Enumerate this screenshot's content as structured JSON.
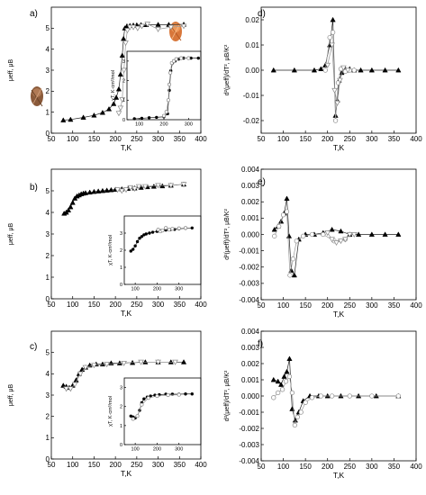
{
  "chart_data": [
    {
      "id": "main-a",
      "type": "scatter",
      "panel_label": "a)",
      "xlabel": "T,K",
      "ylabel": "μeff, μB",
      "xlim": [
        50,
        400
      ],
      "ylim": [
        0,
        6
      ],
      "xticks": [
        50,
        100,
        150,
        200,
        250,
        300,
        350,
        400
      ],
      "yticks": [
        0,
        1,
        2,
        3,
        4,
        5
      ],
      "series": [
        {
          "marker": "triangle-filled",
          "color": "#000000",
          "x": [
            78,
            95,
            125,
            150,
            170,
            185,
            196,
            202,
            208,
            212,
            216,
            219,
            222,
            227,
            234,
            242,
            250,
            260,
            272,
            300,
            325,
            360
          ],
          "y": [
            0.62,
            0.65,
            0.75,
            0.85,
            0.98,
            1.15,
            1.4,
            1.7,
            2.1,
            2.8,
            3.7,
            4.5,
            5.0,
            5.1,
            5.12,
            5.14,
            5.15,
            5.16,
            5.16,
            5.17,
            5.17,
            5.18
          ]
        },
        {
          "marker": "triangle-open-down",
          "color": "#888888",
          "x": [
            208,
            212,
            216,
            220,
            224,
            228,
            234,
            242,
            252,
            262,
            275,
            300,
            330,
            360
          ],
          "y": [
            0.95,
            1.2,
            1.6,
            3.0,
            4.3,
            4.9,
            5.05,
            5.05,
            5.0,
            5.1,
            5.2,
            4.95,
            5.05,
            5.1
          ]
        }
      ]
    },
    {
      "id": "inset-a",
      "type": "scatter",
      "inset": true,
      "xlabel": "",
      "ylabel": "χT, K·cm³/mol",
      "xlim": [
        50,
        350
      ],
      "ylim": [
        0,
        3.5
      ],
      "xticks": [
        100,
        200,
        300
      ],
      "yticks": [
        0,
        1,
        2,
        3
      ],
      "series": [
        {
          "marker": "circle-filled",
          "color": "#000000",
          "x": [
            80,
            110,
            140,
            170,
            200,
            215,
            222,
            228,
            235,
            245,
            260,
            280,
            310,
            340
          ],
          "y": [
            0.05,
            0.07,
            0.1,
            0.12,
            0.15,
            0.3,
            1.5,
            2.5,
            2.9,
            3.0,
            3.1,
            3.15,
            3.15,
            3.15
          ]
        },
        {
          "marker": "circle-open",
          "color": "#888888",
          "x": [
            200,
            210,
            218,
            222,
            226,
            232,
            240,
            250,
            270,
            300
          ],
          "y": [
            0.2,
            0.4,
            1.0,
            1.8,
            2.4,
            2.9,
            3.0,
            3.1,
            3.15,
            3.15
          ]
        }
      ]
    },
    {
      "id": "main-b",
      "type": "scatter",
      "panel_label": "b)",
      "xlabel": "T,K",
      "ylabel": "μeff, μB",
      "xlim": [
        50,
        400
      ],
      "ylim": [
        0,
        6
      ],
      "xticks": [
        50,
        100,
        150,
        200,
        250,
        300,
        350,
        400
      ],
      "yticks": [
        0,
        1,
        2,
        3,
        4,
        5
      ],
      "series": [
        {
          "marker": "triangle-filled",
          "color": "#000000",
          "x": [
            80,
            85,
            90,
            95,
            100,
            105,
            110,
            115,
            120,
            125,
            130,
            140,
            150,
            160,
            170,
            180,
            190,
            200,
            215,
            230,
            245,
            260,
            275,
            290,
            310,
            330,
            360
          ],
          "y": [
            3.95,
            4.0,
            4.1,
            4.25,
            4.45,
            4.65,
            4.75,
            4.8,
            4.85,
            4.88,
            4.9,
            4.93,
            4.96,
            4.98,
            5.0,
            5.02,
            5.04,
            5.06,
            5.08,
            5.1,
            5.12,
            5.15,
            5.18,
            5.2,
            5.22,
            5.25,
            5.3
          ]
        },
        {
          "marker": "triangle-open-down",
          "color": "#888888",
          "x": [
            205,
            215,
            225,
            235,
            245,
            255,
            270,
            300,
            330,
            360
          ],
          "y": [
            5.05,
            5.0,
            5.05,
            5.15,
            5.1,
            5.2,
            5.2,
            5.25,
            5.25,
            5.3
          ]
        }
      ]
    },
    {
      "id": "inset-b",
      "type": "scatter",
      "inset": true,
      "xlabel": "",
      "ylabel": "χT, K·cm³/mol",
      "xlim": [
        50,
        400
      ],
      "ylim": [
        0,
        4
      ],
      "xticks": [
        100,
        200,
        300
      ],
      "yticks": [
        0,
        1,
        2,
        3
      ],
      "series": [
        {
          "marker": "circle-filled",
          "color": "#000000",
          "x": [
            80,
            90,
            100,
            110,
            120,
            130,
            140,
            150,
            165,
            180,
            200,
            220,
            240,
            260,
            280,
            300,
            330,
            360
          ],
          "y": [
            1.95,
            2.05,
            2.25,
            2.5,
            2.7,
            2.8,
            2.9,
            2.95,
            3.0,
            3.05,
            3.1,
            3.15,
            3.18,
            3.2,
            3.22,
            3.25,
            3.28,
            3.3
          ]
        },
        {
          "marker": "circle-open",
          "color": "#888888",
          "x": [
            205,
            215,
            225,
            240,
            255,
            270,
            300,
            330
          ],
          "y": [
            3.2,
            3.1,
            3.15,
            3.3,
            3.2,
            3.25,
            3.28,
            3.3
          ]
        }
      ]
    },
    {
      "id": "main-c",
      "type": "scatter",
      "panel_label": "c)",
      "xlabel": "T,K",
      "ylabel": "μeff, μB",
      "xlim": [
        50,
        400
      ],
      "ylim": [
        0,
        6
      ],
      "xticks": [
        50,
        100,
        150,
        200,
        250,
        300,
        350,
        400
      ],
      "yticks": [
        0,
        1,
        2,
        3,
        4,
        5
      ],
      "series": [
        {
          "marker": "triangle-filled",
          "color": "#000000",
          "x": [
            78,
            85,
            92,
            100,
            108,
            115,
            122,
            130,
            140,
            155,
            170,
            190,
            210,
            240,
            270,
            300,
            330,
            360
          ],
          "y": [
            3.45,
            3.4,
            3.35,
            3.45,
            3.7,
            4.0,
            4.2,
            4.3,
            4.4,
            4.45,
            4.45,
            4.5,
            4.5,
            4.52,
            4.55,
            4.55,
            4.55,
            4.55
          ]
        },
        {
          "marker": "triangle-open-down",
          "color": "#888888",
          "x": [
            85,
            95,
            105,
            118,
            130,
            150,
            180,
            220,
            260,
            300,
            340
          ],
          "y": [
            3.3,
            3.3,
            3.5,
            4.0,
            4.3,
            4.4,
            4.45,
            4.5,
            4.55,
            4.55,
            4.55
          ]
        }
      ]
    },
    {
      "id": "inset-c",
      "type": "scatter",
      "inset": true,
      "xlabel": "",
      "ylabel": "χT, K·cm³/mol",
      "xlim": [
        50,
        400
      ],
      "ylim": [
        0,
        3.5
      ],
      "xticks": [
        100,
        200,
        300
      ],
      "yticks": [
        0,
        1,
        2,
        3
      ],
      "series": [
        {
          "marker": "circle-filled",
          "color": "#000000",
          "x": [
            80,
            90,
            100,
            110,
            120,
            130,
            140,
            155,
            170,
            190,
            210,
            240,
            270,
            300,
            330,
            360
          ],
          "y": [
            1.5,
            1.45,
            1.4,
            1.5,
            1.8,
            2.2,
            2.4,
            2.5,
            2.55,
            2.6,
            2.62,
            2.65,
            2.65,
            2.65,
            2.66,
            2.66
          ]
        },
        {
          "marker": "circle-open",
          "color": "#888888",
          "x": [
            90,
            110,
            130,
            160,
            200,
            250,
            300
          ],
          "y": [
            1.35,
            1.5,
            2.1,
            2.45,
            2.55,
            2.6,
            2.62
          ]
        }
      ]
    },
    {
      "id": "deriv-d",
      "type": "scatter",
      "panel_label": "d)",
      "xlabel": "T,K",
      "ylabel": "d²(μeff)/dT², μB/K²",
      "xlim": [
        50,
        400
      ],
      "ylim": [
        -0.025,
        0.025
      ],
      "xticks": [
        50,
        100,
        150,
        200,
        250,
        300,
        350,
        400
      ],
      "yticks": [
        -0.02,
        -0.01,
        0.0,
        0.01,
        0.02
      ],
      "yticklabels": [
        "-0.02",
        "-0.01",
        "0.00",
        "0.01",
        "0.02"
      ],
      "series": [
        {
          "marker": "triangle-filled",
          "color": "#000000",
          "x": [
            78,
            125,
            170,
            185,
            195,
            205,
            212,
            218,
            222,
            226,
            232,
            240,
            250,
            260,
            275,
            300,
            330,
            360
          ],
          "y": [
            0.0,
            0.0,
            0.0,
            0.0005,
            0.002,
            0.01,
            0.02,
            -0.018,
            -0.012,
            -0.004,
            -0.001,
            0.0005,
            0.0005,
            0.0,
            0.0,
            0.0,
            0.0,
            0.0
          ]
        },
        {
          "marker": "circle-open",
          "color": "#888888",
          "x": [
            195,
            205,
            212,
            218,
            224,
            230,
            240,
            250,
            260
          ],
          "y": [
            0.0,
            0.013,
            0.015,
            -0.02,
            -0.005,
            0.0005,
            -0.0005,
            0.0,
            0.0
          ]
        },
        {
          "marker": "triangle-open-down",
          "color": "#888888",
          "x": [
            200,
            210,
            216,
            222,
            228,
            236,
            246
          ],
          "y": [
            0.002,
            0.01,
            -0.008,
            -0.013,
            -0.004,
            0.001,
            0.0
          ]
        }
      ]
    },
    {
      "id": "deriv-e",
      "type": "scatter",
      "panel_label": "e)",
      "xlabel": "T,K",
      "ylabel": "d²(μeff)/dT², μB/K²",
      "xlim": [
        50,
        400
      ],
      "ylim": [
        -0.004,
        0.004
      ],
      "xticks": [
        50,
        100,
        150,
        200,
        250,
        300,
        350,
        400
      ],
      "yticks": [
        -0.004,
        -0.003,
        -0.002,
        -0.001,
        0.0,
        0.001,
        0.002,
        0.003,
        0.004
      ],
      "yticklabels": [
        "-0.004",
        "-0.003",
        "-0.002",
        "-0.001",
        "0.000",
        "0.001",
        "0.002",
        "0.003",
        "0.004"
      ],
      "series": [
        {
          "marker": "triangle-filled",
          "color": "#000000",
          "x": [
            80,
            88,
            95,
            102,
            108,
            113,
            118,
            125,
            135,
            150,
            170,
            190,
            210,
            230,
            250,
            270,
            300,
            330,
            360
          ],
          "y": [
            0.0003,
            0.0005,
            0.0008,
            0.0013,
            0.0022,
            -0.0001,
            -0.0022,
            -0.0025,
            -0.0003,
            0.0,
            0.0,
            0.0001,
            0.0003,
            0.0002,
            0.0,
            0.0,
            0.0,
            0.0,
            0.0
          ]
        },
        {
          "marker": "circle-open",
          "color": "#888888",
          "x": [
            80,
            90,
            100,
            108,
            115,
            122,
            130,
            145,
            165,
            190,
            215,
            240
          ],
          "y": [
            -0.0001,
            0.0005,
            0.0012,
            0.0014,
            -0.0025,
            -0.0015,
            -0.0004,
            -0.0001,
            0.0,
            0.0,
            -0.0004,
            -0.0003
          ]
        },
        {
          "marker": "triangle-open-down",
          "color": "#888888",
          "x": [
            200,
            210,
            220,
            230,
            240,
            250,
            260
          ],
          "y": [
            0.0001,
            -0.0003,
            -0.0005,
            -0.0004,
            -0.0003,
            0.0,
            0.0
          ]
        }
      ]
    },
    {
      "id": "deriv-f",
      "type": "scatter",
      "panel_label": "f)",
      "xlabel": "T,K",
      "ylabel": "d²(μeff)/dT², μB/K²",
      "xlim": [
        50,
        400
      ],
      "ylim": [
        -0.004,
        0.004
      ],
      "xticks": [
        50,
        100,
        150,
        200,
        250,
        300,
        350,
        400
      ],
      "yticks": [
        -0.004,
        -0.003,
        -0.002,
        -0.001,
        0.0,
        0.001,
        0.002,
        0.003,
        0.004
      ],
      "yticklabels": [
        "-0.004",
        "-0.003",
        "-0.002",
        "-0.001",
        "0.000",
        "0.001",
        "0.002",
        "0.003",
        "0.004"
      ],
      "series": [
        {
          "marker": "triangle-filled",
          "color": "#000000",
          "x": [
            78,
            88,
            95,
            102,
            108,
            114,
            120,
            127,
            135,
            145,
            160,
            180,
            200,
            230,
            270,
            310,
            360
          ],
          "y": [
            0.001,
            0.0009,
            0.0007,
            0.0012,
            0.0015,
            0.0023,
            -0.0008,
            -0.0015,
            -0.001,
            -0.0003,
            0.0,
            0.0,
            0.0,
            0.0,
            0.0,
            0.0,
            0.0
          ]
        },
        {
          "marker": "circle-open",
          "color": "#888888",
          "x": [
            78,
            88,
            98,
            106,
            114,
            120,
            126,
            132,
            140,
            150,
            165,
            185,
            210,
            250,
            300,
            360
          ],
          "y": [
            -0.0001,
            0.0002,
            0.0004,
            0.0009,
            0.0012,
            0.0002,
            -0.0018,
            -0.0013,
            -0.001,
            -0.0004,
            -0.0001,
            0.0,
            0.0,
            0.0,
            0.0,
            0.0
          ]
        }
      ]
    }
  ]
}
